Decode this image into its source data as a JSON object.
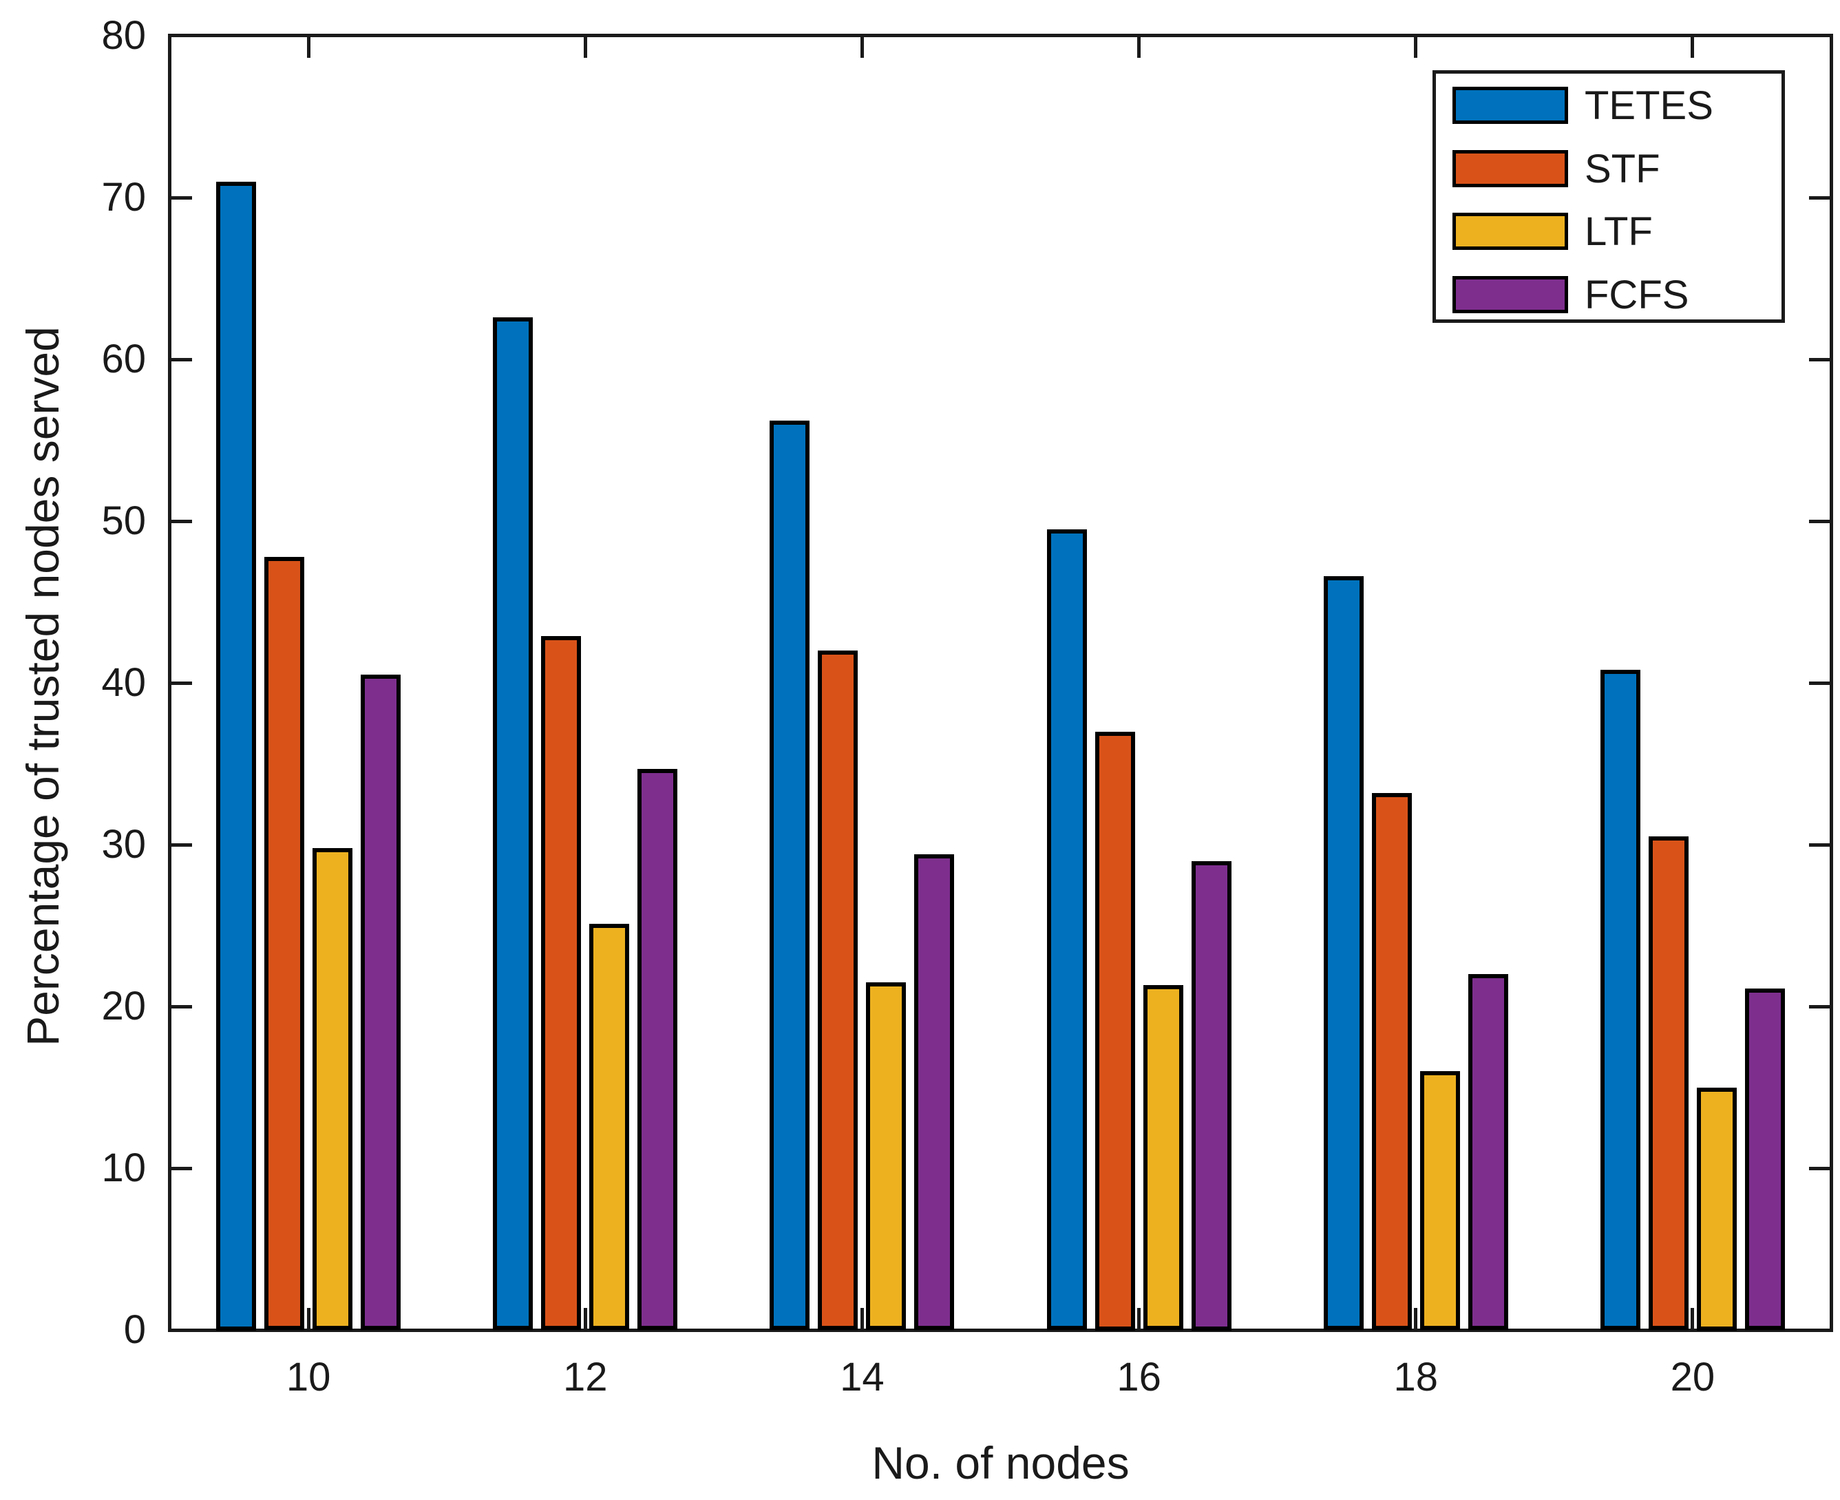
{
  "figure": {
    "background": "#ffffff",
    "axis_color": "#1a1a1a"
  },
  "chart_data": {
    "type": "bar",
    "title": "",
    "xlabel": "No. of nodes",
    "ylabel": "Percentage of trusted nodes served",
    "categories": [
      "10",
      "12",
      "14",
      "16",
      "18",
      "20"
    ],
    "series": [
      {
        "name": "TETES",
        "color": "#0072BD",
        "values": [
          71.0,
          62.6,
          56.2,
          49.5,
          46.6,
          40.8
        ]
      },
      {
        "name": "STF",
        "color": "#D95319",
        "values": [
          47.8,
          42.9,
          42.0,
          37.0,
          33.2,
          30.5
        ]
      },
      {
        "name": "LTF",
        "color": "#EDB120",
        "values": [
          29.8,
          25.1,
          21.5,
          21.3,
          16.0,
          15.0
        ]
      },
      {
        "name": "FCFS",
        "color": "#7E2F8E",
        "values": [
          40.5,
          34.7,
          29.4,
          29.0,
          22.0,
          21.1
        ]
      }
    ],
    "ylim": [
      0,
      80
    ],
    "yticks": [
      "0",
      "10",
      "20",
      "30",
      "40",
      "50",
      "60",
      "70",
      "80"
    ],
    "grid": false,
    "legend_position": "top-right"
  }
}
